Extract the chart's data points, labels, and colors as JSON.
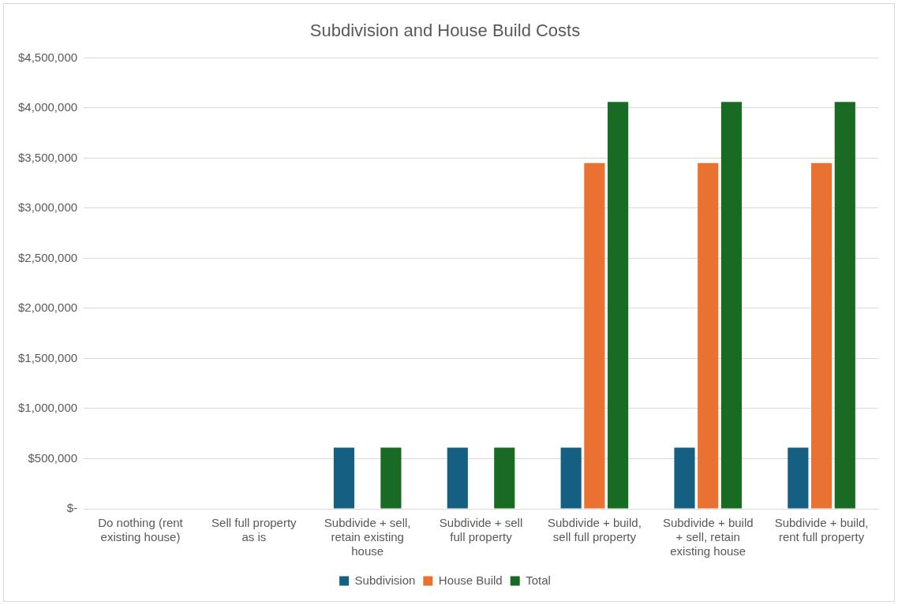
{
  "chart_data": {
    "type": "bar",
    "title": "Subdivision and House Build Costs",
    "categories": [
      "Do nothing (rent existing house)",
      "Sell full property as is",
      "Subdivide + sell, retain existing house",
      "Subdivide + sell full property",
      "Subdivide + build, sell full property",
      "Subdivide + build + sell, retain existing house",
      "Subdivide + build, rent full property"
    ],
    "series": [
      {
        "name": "Subdivision",
        "color": "#156082",
        "values": [
          null,
          null,
          610000,
          610000,
          610000,
          610000,
          610000
        ]
      },
      {
        "name": "House Build",
        "color": "#e97132",
        "values": [
          null,
          null,
          null,
          null,
          3450000,
          3450000,
          3450000
        ]
      },
      {
        "name": "Total",
        "color": "#196b24",
        "values": [
          null,
          null,
          610000,
          610000,
          4060000,
          4060000,
          4060000
        ]
      }
    ],
    "ylim": [
      0,
      4500000
    ],
    "yticks": [
      {
        "value": 0,
        "label": "$-"
      },
      {
        "value": 500000,
        "label": "$500,000"
      },
      {
        "value": 1000000,
        "label": "$1,000,000"
      },
      {
        "value": 1500000,
        "label": "$1,500,000"
      },
      {
        "value": 2000000,
        "label": "$2,000,000"
      },
      {
        "value": 2500000,
        "label": "$2,500,000"
      },
      {
        "value": 3000000,
        "label": "$3,000,000"
      },
      {
        "value": 3500000,
        "label": "$3,500,000"
      },
      {
        "value": 4000000,
        "label": "$4,000,000"
      },
      {
        "value": 4500000,
        "label": "$4,500,000"
      }
    ],
    "grid": "y",
    "legend": "bottom"
  }
}
